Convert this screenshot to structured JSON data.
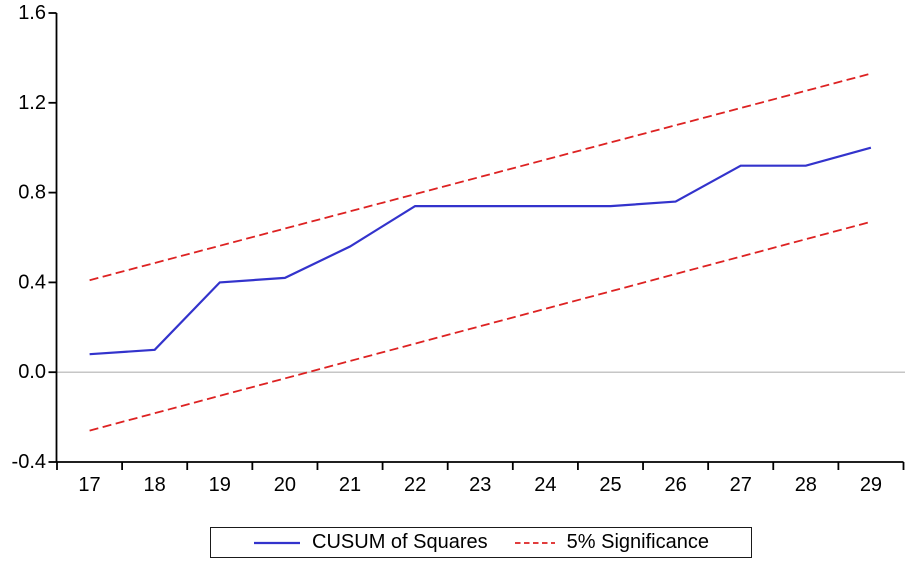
{
  "chart_data": {
    "type": "line",
    "title": "",
    "x": [
      17,
      18,
      19,
      20,
      21,
      22,
      23,
      24,
      25,
      26,
      27,
      28,
      29
    ],
    "x_tick_labels": [
      "17",
      "18",
      "19",
      "20",
      "21",
      "22",
      "23",
      "24",
      "25",
      "26",
      "27",
      "28",
      "29"
    ],
    "y_ticks": [
      "1.6",
      "1.2",
      "0.8",
      "0.4",
      "0.0",
      "-0.4"
    ],
    "ylim": [
      -0.4,
      1.6
    ],
    "grid": "zero-line-only",
    "legend_position": "bottom",
    "series": [
      {
        "name": "CUSUM of Squares",
        "style": "solid",
        "color": "#3333cc",
        "values": [
          0.08,
          0.1,
          0.4,
          0.42,
          0.56,
          0.74,
          0.74,
          0.74,
          0.74,
          0.76,
          0.92,
          0.92,
          1.0
        ]
      },
      {
        "name": "5% Significance upper band",
        "style": "dashed",
        "color": "#dd2222",
        "x": [
          17,
          29
        ],
        "values": [
          0.41,
          1.33
        ]
      },
      {
        "name": "5% Significance lower band",
        "style": "dashed",
        "color": "#dd2222",
        "x": [
          17,
          29
        ],
        "values": [
          -0.26,
          0.67
        ]
      }
    ]
  },
  "legend": {
    "items": [
      {
        "label": "CUSUM of Squares",
        "color": "#3333cc",
        "style": "solid"
      },
      {
        "label": "5% Significance",
        "color": "#dd2222",
        "style": "dashed"
      }
    ]
  },
  "colors": {
    "background": "#ffffff",
    "axis": "#000000",
    "zero_line": "#b3b3b3",
    "legend_border": "#1a1a1a",
    "text": "#000000"
  }
}
